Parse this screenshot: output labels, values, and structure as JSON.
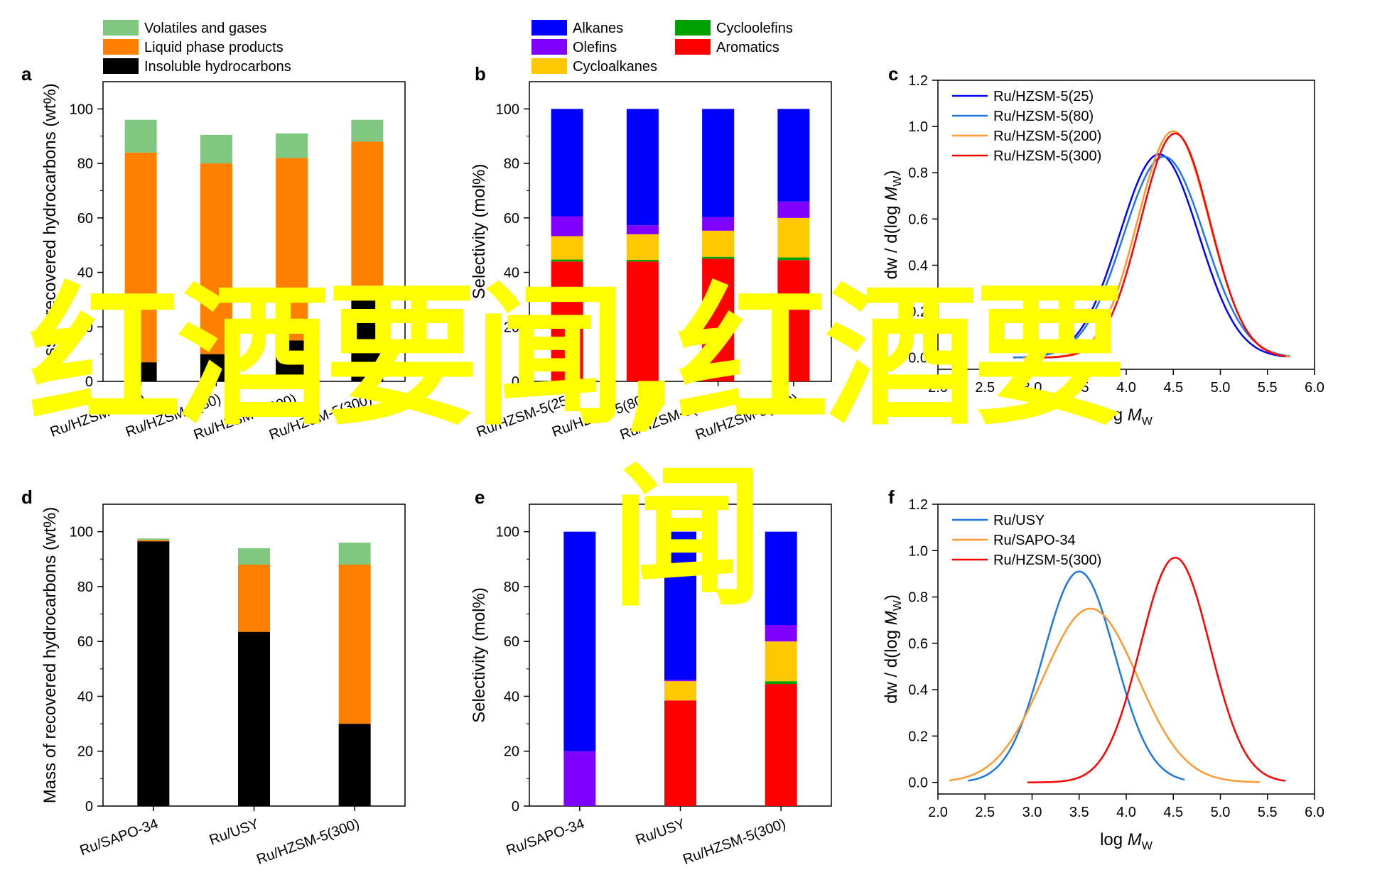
{
  "watermark": {
    "line1": "红酒要闻,红酒要",
    "line2": "闻",
    "color": "#ffff00"
  },
  "colors": {
    "volatiles": "#80c880",
    "liquid": "#ff8000",
    "insoluble": "#000000",
    "alkanes": "#0000ff",
    "olefins": "#8000ff",
    "cycloalkanes": "#ffc800",
    "cycloolefins": "#00a000",
    "aromatics": "#ff0000",
    "hzsm25": "#0000ff",
    "hzsm80": "#1f77e0",
    "hzsm200": "#ff9933",
    "hzsm300": "#ff0000",
    "usy": "#1f77e0",
    "sapo34": "#ff9933"
  },
  "chart_data": [
    {
      "panel": "a",
      "type": "bar",
      "stacked": true,
      "ylabel": "Mass of recovered hydrocarbons (wt%)",
      "ylim": [
        0,
        110
      ],
      "yticks": [
        0,
        20,
        40,
        60,
        80,
        100
      ],
      "categories": [
        "Ru/HZSM-5(25)",
        "Ru/HZSM-5(80)",
        "Ru/HZSM-5(200)",
        "Ru/HZSM-5(300)"
      ],
      "series": [
        {
          "name": "Insoluble hydrocarbons",
          "color_key": "insoluble",
          "values": [
            7,
            10,
            15,
            30
          ]
        },
        {
          "name": "Liquid phase products",
          "color_key": "liquid",
          "values": [
            77,
            70,
            67,
            58
          ]
        },
        {
          "name": "Volatiles and gases",
          "color_key": "volatiles",
          "values": [
            12,
            10.5,
            9,
            8
          ]
        }
      ],
      "legend_order": [
        2,
        1,
        0
      ],
      "legend": "top-left, above plot"
    },
    {
      "panel": "b",
      "type": "bar",
      "stacked": true,
      "ylabel": "Selectivity (mol%)",
      "ylim": [
        0,
        110
      ],
      "yticks": [
        0,
        20,
        40,
        60,
        80,
        100
      ],
      "categories": [
        "Ru/HZSM-5(25)",
        "Ru/HZSM-5(80)",
        "Ru/HZSM-5(200)",
        "Ru/HZSM-5(300)"
      ],
      "series": [
        {
          "name": "Aromatics",
          "color_key": "aromatics",
          "values": [
            44,
            44,
            45,
            44.5
          ]
        },
        {
          "name": "Cycloolefins",
          "color_key": "cycloolefins",
          "values": [
            0.7,
            0.6,
            0.7,
            1
          ]
        },
        {
          "name": "Cycloalkanes",
          "color_key": "cycloalkanes",
          "values": [
            8.6,
            9.4,
            9.6,
            14.5
          ]
        },
        {
          "name": "Olefins",
          "color_key": "olefins",
          "values": [
            7.3,
            3.3,
            5,
            6
          ]
        },
        {
          "name": "Alkanes",
          "color_key": "alkanes",
          "values": [
            39.4,
            42.7,
            39.7,
            34
          ]
        }
      ],
      "legend_order": [
        4,
        3,
        2,
        1,
        0
      ],
      "legend": "top, two columns above plot"
    },
    {
      "panel": "c",
      "type": "line",
      "xlabel": "log MW",
      "ylabel": "dw / d(log MW)",
      "xlim": [
        2.0,
        6.0
      ],
      "ylim": [
        -0.05,
        1.2
      ],
      "xticks": [
        2.0,
        2.5,
        3.0,
        3.5,
        4.0,
        4.5,
        5.0,
        5.5,
        6.0
      ],
      "yticks": [
        0.0,
        0.2,
        0.4,
        0.6,
        0.8,
        1.0,
        1.2
      ],
      "series": [
        {
          "name": "Ru/HZSM-5(25)",
          "color_key": "hzsm25",
          "peak_x": 4.35,
          "peak_y": 0.88,
          "sigma": 0.42,
          "x_range": [
            2.8,
            5.7
          ]
        },
        {
          "name": "Ru/HZSM-5(80)",
          "color_key": "hzsm80",
          "peak_x": 4.4,
          "peak_y": 0.87,
          "sigma": 0.43,
          "x_range": [
            2.8,
            5.75
          ]
        },
        {
          "name": "Ru/HZSM-5(200)",
          "color_key": "hzsm200",
          "peak_x": 4.5,
          "peak_y": 0.98,
          "sigma": 0.38,
          "x_range": [
            2.9,
            5.75
          ]
        },
        {
          "name": "Ru/HZSM-5(300)",
          "color_key": "hzsm300",
          "peak_x": 4.52,
          "peak_y": 0.97,
          "sigma": 0.37,
          "x_range": [
            2.95,
            5.7
          ]
        }
      ],
      "legend": "top-left inside plot"
    },
    {
      "panel": "d",
      "type": "bar",
      "stacked": true,
      "ylabel": "Mass of recovered hydrocarbons (wt%)",
      "ylim": [
        0,
        110
      ],
      "yticks": [
        0,
        20,
        40,
        60,
        80,
        100
      ],
      "categories": [
        "Ru/SAPO-34",
        "Ru/USY",
        "Ru/HZSM-5(300)"
      ],
      "series": [
        {
          "name": "Insoluble hydrocarbons",
          "color_key": "insoluble",
          "values": [
            96.5,
            63.5,
            30
          ]
        },
        {
          "name": "Liquid phase products",
          "color_key": "liquid",
          "values": [
            0.5,
            24.5,
            58
          ]
        },
        {
          "name": "Volatiles and gases",
          "color_key": "volatiles",
          "values": [
            0.5,
            6,
            8
          ]
        }
      ]
    },
    {
      "panel": "e",
      "type": "bar",
      "stacked": true,
      "ylabel": "Selectivity (mol%)",
      "ylim": [
        0,
        110
      ],
      "yticks": [
        0,
        20,
        40,
        60,
        80,
        100
      ],
      "categories": [
        "Ru/SAPO-34",
        "Ru/USY",
        "Ru/HZSM-5(300)"
      ],
      "series": [
        {
          "name": "Aromatics",
          "color_key": "aromatics",
          "values": [
            0,
            38.5,
            44.5
          ]
        },
        {
          "name": "Cycloolefins",
          "color_key": "cycloolefins",
          "values": [
            0,
            0,
            1
          ]
        },
        {
          "name": "Cycloalkanes",
          "color_key": "cycloalkanes",
          "values": [
            0,
            7,
            14.5
          ]
        },
        {
          "name": "Olefins",
          "color_key": "olefins",
          "values": [
            20,
            0.5,
            6
          ]
        },
        {
          "name": "Alkanes",
          "color_key": "alkanes",
          "values": [
            80,
            54,
            34
          ]
        }
      ]
    },
    {
      "panel": "f",
      "type": "line",
      "xlabel": "log MW",
      "ylabel": "dw / d(log MW)",
      "xlim": [
        2.0,
        6.0
      ],
      "ylim": [
        -0.05,
        1.2
      ],
      "xticks": [
        2.0,
        2.5,
        3.0,
        3.5,
        4.0,
        4.5,
        5.0,
        5.5,
        6.0
      ],
      "yticks": [
        0.0,
        0.2,
        0.4,
        0.6,
        0.8,
        1.0,
        1.2
      ],
      "series": [
        {
          "name": "Ru/USY",
          "color_key": "usy",
          "peak_x": 3.5,
          "peak_y": 0.91,
          "sigma": 0.38,
          "x_range": [
            2.32,
            4.62
          ]
        },
        {
          "name": "Ru/SAPO-34",
          "color_key": "sapo34",
          "peak_x": 3.62,
          "peak_y": 0.75,
          "sigma": 0.5,
          "x_range": [
            2.12,
            5.42
          ]
        },
        {
          "name": "Ru/HZSM-5(300)",
          "color_key": "hzsm300",
          "peak_x": 4.52,
          "peak_y": 0.97,
          "sigma": 0.37,
          "x_range": [
            2.95,
            5.7
          ]
        }
      ],
      "legend": "top-left inside plot"
    }
  ]
}
